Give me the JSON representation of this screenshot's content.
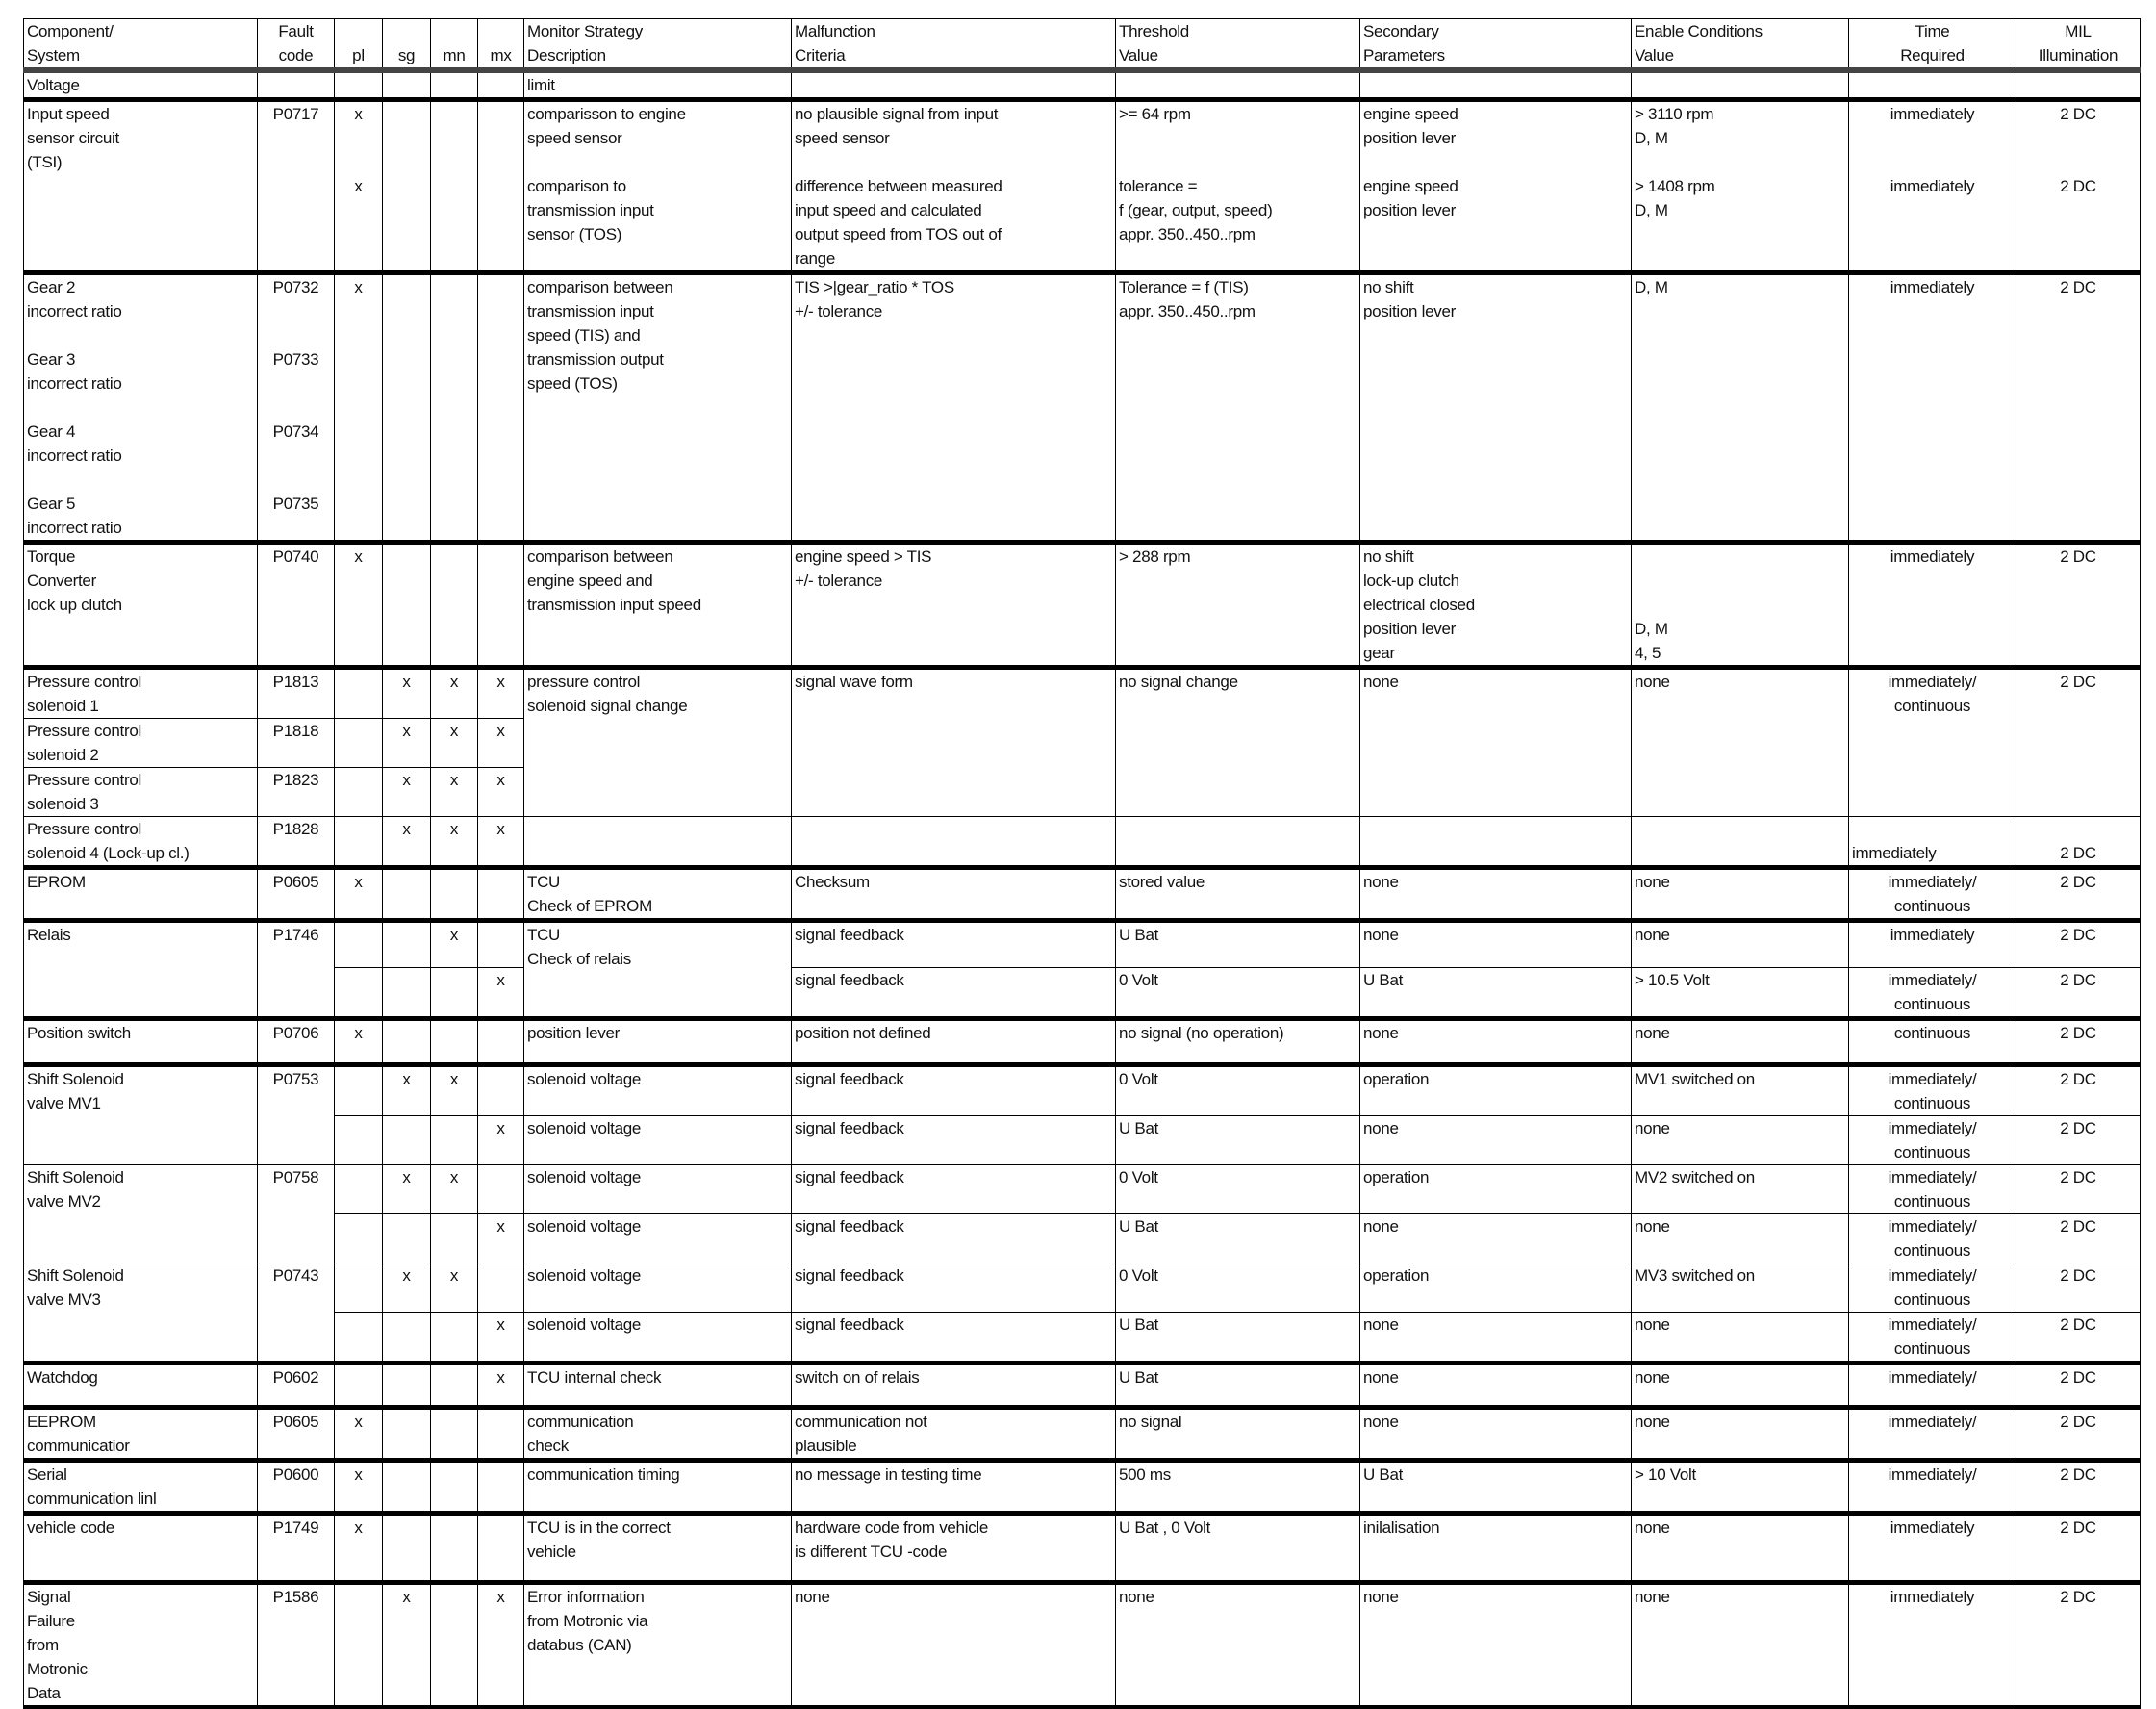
{
  "headers": [
    "Component/\nSystem",
    "Fault\ncode",
    "pl",
    "sg",
    "mn",
    "mx",
    "Monitor Strategy\nDescription",
    "Malfunction\nCriteria",
    "Threshold\nValue",
    "Secondary\nParameters",
    "Enable Conditions\nValue",
    "Time\nRequired",
    "MIL\nIllumination"
  ],
  "entries": [
    {
      "component": "Voltage",
      "code": "",
      "pl": "",
      "sg": "",
      "mn": "",
      "mx": "",
      "description": "limit",
      "malfunction": "",
      "threshold": "",
      "secondary": "",
      "enable": "",
      "time": "",
      "mil": ""
    },
    {
      "component": "Input speed\nsensor circuit\n(TSI)",
      "code": "P0717",
      "pl": "x\n\n\nx",
      "sg": "",
      "mn": "",
      "mx": "",
      "description": "comparisson to engine\nspeed sensor\n\ncomparison to\ntransmission input\nsensor (TOS)",
      "malfunction": "no plausible signal from input\nspeed sensor\n\ndifference between measured\ninput speed and calculated\noutput speed from TOS out of\nrange",
      "threshold": ">= 64 rpm\n\n\ntolerance =\nf (gear, output, speed)\nappr. 350..450..rpm",
      "secondary": "engine speed\nposition lever\n\nengine speed\nposition lever",
      "enable": "> 3110 rpm\nD, M\n\n> 1408 rpm\nD, M",
      "time": "immediately\n\n\nimmediately",
      "mil": "2 DC\n\n\n2 DC"
    },
    {
      "component": "Gear 2\nincorrect ratio\n\nGear 3\nincorrect ratio\n\nGear 4\nincorrect ratio\n\nGear 5\nincorrect ratio",
      "code": "P0732\n\n\nP0733\n\n\nP0734\n\n\nP0735",
      "pl": "x",
      "sg": "",
      "mn": "",
      "mx": "",
      "description": "comparison between\ntransmission input\nspeed (TIS) and\ntransmission output\nspeed (TOS)",
      "malfunction": "TIS >|gear_ratio * TOS\n+/- tolerance",
      "threshold": "Tolerance = f (TIS)\nappr. 350..450..rpm",
      "secondary": "no shift\nposition lever",
      "enable": "D, M",
      "time": "immediately",
      "mil": "2 DC"
    },
    {
      "component": "Torque\nConverter\nlock up clutch",
      "code": "P0740",
      "pl": "x",
      "sg": "",
      "mn": "",
      "mx": "",
      "description": "comparison between\nengine speed and\ntransmission input speed",
      "malfunction": "engine speed > TIS\n+/- tolerance",
      "threshold": "> 288 rpm",
      "secondary": "no shift\nlock-up clutch\nelectrical closed\nposition lever\ngear",
      "enable": "\n\n\nD, M\n4, 5",
      "time": "immediately",
      "mil": "2 DC"
    },
    {
      "group": [
        {
          "component": "Pressure control\nsolenoid 1",
          "code": "P1813",
          "pl": "",
          "sg": "x",
          "mn": "x",
          "mx": "x"
        },
        {
          "component": "Pressure control\nsolenoid 2",
          "code": "P1818",
          "pl": "",
          "sg": "x",
          "mn": "x",
          "mx": "x"
        },
        {
          "component": "Pressure control\nsolenoid 3",
          "code": "P1823",
          "pl": "",
          "sg": "x",
          "mn": "x",
          "mx": "x"
        }
      ],
      "description": "pressure control\nsolenoid signal change",
      "malfunction": "signal wave form",
      "threshold": "no signal change",
      "secondary": "none",
      "enable": "none",
      "time": "immediately/\ncontinuous",
      "mil": "2 DC"
    },
    {
      "component": "Pressure control\nsolenoid 4 (Lock-up cl.)",
      "code": "P1828",
      "pl": "",
      "sg": "x",
      "mn": "x",
      "mx": "x",
      "description": "",
      "malfunction": "",
      "threshold": "",
      "secondary": "",
      "enable": "",
      "time": "immediately",
      "mil": "2 DC"
    },
    {
      "component": "EPROM",
      "code": "P0605",
      "pl": "x",
      "sg": "",
      "mn": "",
      "mx": "",
      "description": "TCU\nCheck of EPROM",
      "malfunction": "Checksum",
      "threshold": "stored value",
      "secondary": "none",
      "enable": "none",
      "time": "immediately/\ncontinuous",
      "mil": "2 DC"
    },
    {
      "component": "Relais",
      "code": "P1746",
      "description": "TCU\nCheck of relais",
      "sub": [
        {
          "pl": "",
          "sg": "",
          "mn": "x",
          "mx": "",
          "malfunction": "signal feedback",
          "threshold": "U Bat",
          "secondary": "none",
          "enable": "none",
          "time": "immediately",
          "mil": "2 DC"
        },
        {
          "pl": "",
          "sg": "",
          "mn": "",
          "mx": "x",
          "malfunction": "signal feedback",
          "threshold": "0 Volt",
          "secondary": "U Bat",
          "enable": "> 10.5 Volt",
          "time": "immediately/\ncontinuous",
          "mil": "2 DC"
        }
      ]
    },
    {
      "component": "Position switch",
      "code": "P0706",
      "pl": "x",
      "sg": "",
      "mn": "",
      "mx": "",
      "description": "position lever",
      "malfunction": "position not defined",
      "threshold": "no signal (no operation)",
      "secondary": "none",
      "enable": "none",
      "time": "continuous",
      "mil": "2 DC"
    },
    {
      "component": "Shift Solenoid\nvalve MV1",
      "code": "P0753",
      "sub": [
        {
          "pl": "",
          "sg": "x",
          "mn": "x",
          "mx": "",
          "description": "solenoid voltage",
          "malfunction": "signal feedback",
          "threshold": "0 Volt",
          "secondary": "operation",
          "enable": "MV1 switched on",
          "time": "immediately/\ncontinuous",
          "mil": "2 DC"
        },
        {
          "pl": "",
          "sg": "",
          "mn": "",
          "mx": "x",
          "description": "solenoid voltage",
          "malfunction": "signal feedback",
          "threshold": "U Bat",
          "secondary": "none",
          "enable": "none",
          "time": "immediately/\ncontinuous",
          "mil": "2 DC"
        }
      ]
    },
    {
      "component": "Shift Solenoid\nvalve MV2",
      "code": "P0758",
      "sub": [
        {
          "pl": "",
          "sg": "x",
          "mn": "x",
          "mx": "",
          "description": "solenoid voltage",
          "malfunction": "signal feedback",
          "threshold": "0 Volt",
          "secondary": "operation",
          "enable": "MV2 switched on",
          "time": "immediately/\ncontinuous",
          "mil": "2 DC"
        },
        {
          "pl": "",
          "sg": "",
          "mn": "",
          "mx": "x",
          "description": "solenoid voltage",
          "malfunction": "signal feedback",
          "threshold": "U Bat",
          "secondary": "none",
          "enable": "none",
          "time": "immediately/\ncontinuous",
          "mil": "2 DC"
        }
      ]
    },
    {
      "component": "Shift Solenoid\nvalve MV3",
      "code": "P0743",
      "sub": [
        {
          "pl": "",
          "sg": "x",
          "mn": "x",
          "mx": "",
          "description": "solenoid voltage",
          "malfunction": "signal feedback",
          "threshold": "0 Volt",
          "secondary": "operation",
          "enable": "MV3 switched on",
          "time": "immediately/\ncontinuous",
          "mil": "2 DC"
        },
        {
          "pl": "",
          "sg": "",
          "mn": "",
          "mx": "x",
          "description": "solenoid voltage",
          "malfunction": "signal feedback",
          "threshold": "U Bat",
          "secondary": "none",
          "enable": "none",
          "time": "immediately/\ncontinuous",
          "mil": "2 DC"
        }
      ]
    },
    {
      "component": "Watchdog",
      "code": "P0602",
      "pl": "",
      "sg": "",
      "mn": "",
      "mx": "x",
      "description": "TCU internal check",
      "malfunction": "switch on of relais",
      "threshold": "U Bat",
      "secondary": "none",
      "enable": "none",
      "time": "immediately/",
      "mil": "2 DC"
    },
    {
      "component": "EEPROM\ncommunicatior",
      "code": "P0605",
      "pl": "x",
      "sg": "",
      "mn": "",
      "mx": "",
      "description": "communication\ncheck",
      "malfunction": "communication not\nplausible",
      "threshold": "no signal",
      "secondary": "none",
      "enable": "none",
      "time": "immediately/",
      "mil": "2 DC"
    },
    {
      "component": "Serial\ncommunication linl",
      "code": "P0600",
      "pl": "x",
      "sg": "",
      "mn": "",
      "mx": "",
      "description": "communication timing",
      "malfunction": "no message in testing time",
      "threshold": "500 ms",
      "secondary": "U Bat",
      "enable": "> 10 Volt",
      "time": "immediately/",
      "mil": "2 DC"
    },
    {
      "component": "vehicle code",
      "code": "P1749",
      "pl": "x",
      "sg": "",
      "mn": "",
      "mx": "",
      "description": "TCU is in the correct\nvehicle",
      "malfunction": "hardware code from vehicle\nis different TCU -code",
      "threshold": "U Bat , 0 Volt",
      "secondary": "inilalisation",
      "enable": "none",
      "time": "immediately",
      "mil": "2 DC"
    },
    {
      "component": "Signal\nFailure\nfrom\nMotronic\nData",
      "code": "P1586",
      "pl": "",
      "sg": "x",
      "mn": "",
      "mx": "x",
      "description": "Error information\nfrom Motronic via\ndatabus (CAN)",
      "malfunction": "none",
      "threshold": "none",
      "secondary": "none",
      "enable": "none",
      "time": "immediately",
      "mil": "2 DC"
    }
  ]
}
